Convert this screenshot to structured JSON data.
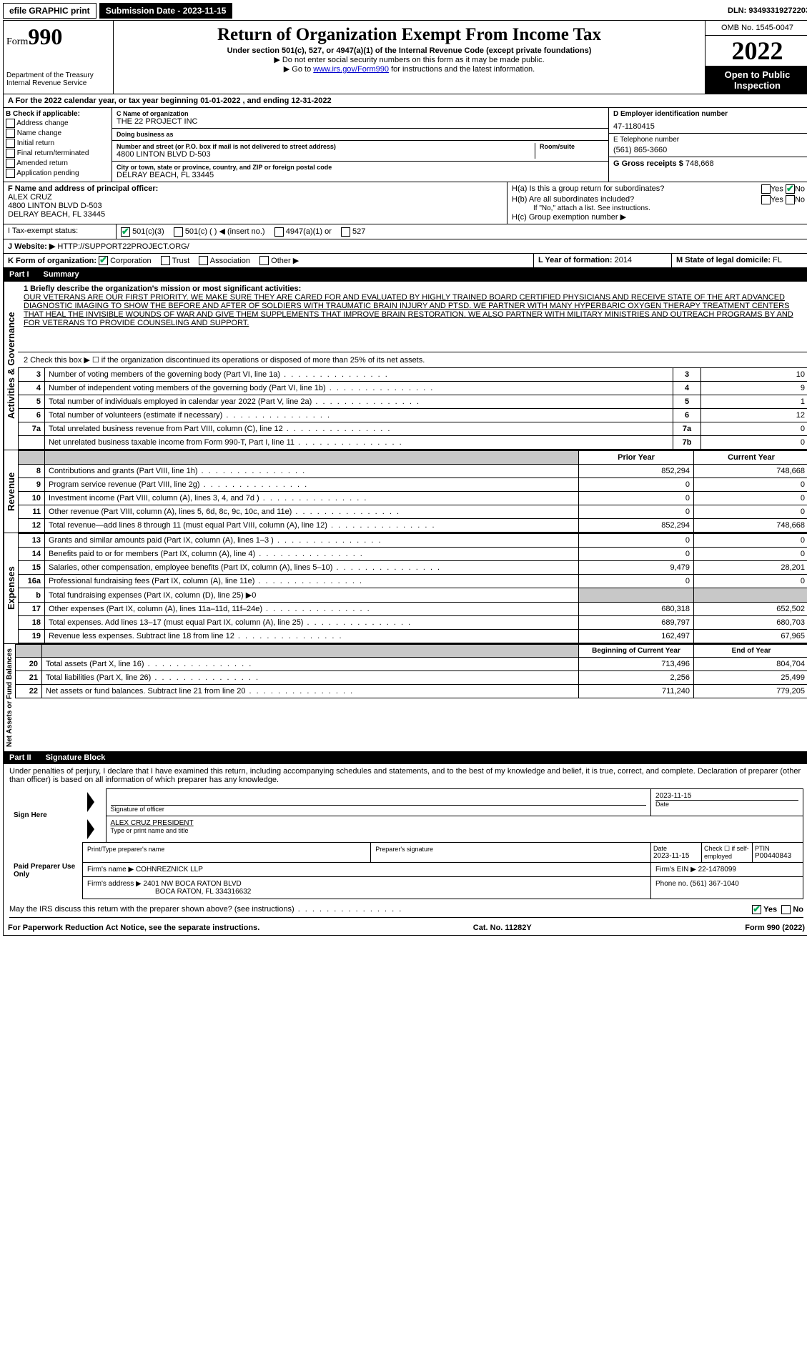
{
  "top": {
    "efile": "efile GRAPHIC print",
    "submission_label": "Submission Date - 2023-11-15",
    "dln": "DLN: 93493319272203"
  },
  "header": {
    "form_prefix": "Form",
    "form_no": "990",
    "dept": "Department of the Treasury",
    "irs": "Internal Revenue Service",
    "title": "Return of Organization Exempt From Income Tax",
    "subtitle": "Under section 501(c), 527, or 4947(a)(1) of the Internal Revenue Code (except private foundations)",
    "note1": "▶ Do not enter social security numbers on this form as it may be made public.",
    "note2_pre": "▶ Go to ",
    "note2_link": "www.irs.gov/Form990",
    "note2_post": " for instructions and the latest information.",
    "omb": "OMB No. 1545-0047",
    "year": "2022",
    "open": "Open to Public Inspection"
  },
  "period": {
    "a": "A For the 2022 calendar year, or tax year beginning 01-01-2022   , and ending 12-31-2022"
  },
  "b": {
    "hdr": "B Check if applicable:",
    "o1": "Address change",
    "o2": "Name change",
    "o3": "Initial return",
    "o4": "Final return/terminated",
    "o5": "Amended return",
    "o6": "Application pending"
  },
  "c": {
    "name_lbl": "C Name of organization",
    "name": "THE 22 PROJECT INC",
    "dba_lbl": "Doing business as",
    "dba": "",
    "addr_lbl": "Number and street (or P.O. box if mail is not delivered to street address)",
    "room_lbl": "Room/suite",
    "addr": "4800 LINTON BLVD D-503",
    "city_lbl": "City or town, state or province, country, and ZIP or foreign postal code",
    "city": "DELRAY BEACH, FL  33445"
  },
  "d": {
    "lbl": "D Employer identification number",
    "val": "47-1180415"
  },
  "e": {
    "lbl": "E Telephone number",
    "val": "(561) 865-3660"
  },
  "g": {
    "lbl": "G Gross receipts $",
    "val": "748,668"
  },
  "f": {
    "lbl": "F Name and address of principal officer:",
    "name": "ALEX CRUZ",
    "addr1": "4800 LINTON BLVD D-503",
    "addr2": "DELRAY BEACH, FL  33445"
  },
  "h": {
    "a": "H(a)  Is this a group return for subordinates?",
    "b": "H(b)  Are all subordinates included?",
    "bnote": "If \"No,\" attach a list. See instructions.",
    "c": "H(c)  Group exemption number ▶",
    "yes": "Yes",
    "no": "No"
  },
  "i": {
    "lbl": "I   Tax-exempt status:",
    "o1": "501(c)(3)",
    "o2": "501(c) (   ) ◀ (insert no.)",
    "o3": "4947(a)(1) or",
    "o4": "527"
  },
  "j": {
    "lbl": "J   Website: ▶",
    "val": "HTTP://SUPPORT22PROJECT.ORG/"
  },
  "k": {
    "lbl": "K Form of organization:",
    "o1": "Corporation",
    "o2": "Trust",
    "o3": "Association",
    "o4": "Other ▶"
  },
  "l": {
    "lbl": "L Year of formation:",
    "val": "2014"
  },
  "m": {
    "lbl": "M State of legal domicile:",
    "val": "FL"
  },
  "part1": {
    "num": "Part I",
    "title": "Summary"
  },
  "summary": {
    "l1": "1   Briefly describe the organization's mission or most significant activities:",
    "mission": "OUR VETERANS ARE OUR FIRST PRIORITY. WE MAKE SURE THEY ARE CARED FOR AND EVALUATED BY HIGHLY TRAINED BOARD CERTIFIED PHYSICIANS AND RECEIVE STATE OF THE ART ADVANCED DIAGNOSTIC IMAGING TO SHOW THE BEFORE AND AFTER OF SOLDIERS WITH TRAUMATIC BRAIN INJURY AND PTSD. WE PARTNER WITH MANY HYPERBARIC OXYGEN THERAPY TREATMENT CENTERS THAT HEAL THE INVISIBLE WOUNDS OF WAR AND GIVE THEM SUPPLEMENTS THAT IMPROVE BRAIN RESTORATION. WE ALSO PARTNER WITH MILITARY MINISTRIES AND OUTREACH PROGRAMS BY AND FOR VETERANS TO PROVIDE COUNSELING AND SUPPORT.",
    "l2": "2   Check this box ▶ ☐ if the organization discontinued its operations or disposed of more than 25% of its net assets.",
    "rows_single": [
      {
        "n": "3",
        "t": "Number of voting members of the governing body (Part VI, line 1a)",
        "b": "3",
        "v": "10"
      },
      {
        "n": "4",
        "t": "Number of independent voting members of the governing body (Part VI, line 1b)",
        "b": "4",
        "v": "9"
      },
      {
        "n": "5",
        "t": "Total number of individuals employed in calendar year 2022 (Part V, line 2a)",
        "b": "5",
        "v": "1"
      },
      {
        "n": "6",
        "t": "Total number of volunteers (estimate if necessary)",
        "b": "6",
        "v": "12"
      },
      {
        "n": "7a",
        "t": "Total unrelated business revenue from Part VIII, column (C), line 12",
        "b": "7a",
        "v": "0"
      },
      {
        "n": "",
        "t": "Net unrelated business taxable income from Form 990-T, Part I, line 11",
        "b": "7b",
        "v": "0"
      }
    ],
    "col_prior": "Prior Year",
    "col_curr": "Current Year",
    "rev_rows": [
      {
        "n": "8",
        "t": "Contributions and grants (Part VIII, line 1h)",
        "p": "852,294",
        "c": "748,668"
      },
      {
        "n": "9",
        "t": "Program service revenue (Part VIII, line 2g)",
        "p": "0",
        "c": "0"
      },
      {
        "n": "10",
        "t": "Investment income (Part VIII, column (A), lines 3, 4, and 7d )",
        "p": "0",
        "c": "0"
      },
      {
        "n": "11",
        "t": "Other revenue (Part VIII, column (A), lines 5, 6d, 8c, 9c, 10c, and 11e)",
        "p": "0",
        "c": "0"
      },
      {
        "n": "12",
        "t": "Total revenue—add lines 8 through 11 (must equal Part VIII, column (A), line 12)",
        "p": "852,294",
        "c": "748,668"
      }
    ],
    "exp_rows": [
      {
        "n": "13",
        "t": "Grants and similar amounts paid (Part IX, column (A), lines 1–3 )",
        "p": "0",
        "c": "0"
      },
      {
        "n": "14",
        "t": "Benefits paid to or for members (Part IX, column (A), line 4)",
        "p": "0",
        "c": "0"
      },
      {
        "n": "15",
        "t": "Salaries, other compensation, employee benefits (Part IX, column (A), lines 5–10)",
        "p": "9,479",
        "c": "28,201"
      },
      {
        "n": "16a",
        "t": "Professional fundraising fees (Part IX, column (A), line 11e)",
        "p": "0",
        "c": "0"
      },
      {
        "n": "b",
        "t": "Total fundraising expenses (Part IX, column (D), line 25) ▶0",
        "p": "",
        "c": "",
        "grey": true
      },
      {
        "n": "17",
        "t": "Other expenses (Part IX, column (A), lines 11a–11d, 11f–24e)",
        "p": "680,318",
        "c": "652,502"
      },
      {
        "n": "18",
        "t": "Total expenses. Add lines 13–17 (must equal Part IX, column (A), line 25)",
        "p": "689,797",
        "c": "680,703"
      },
      {
        "n": "19",
        "t": "Revenue less expenses. Subtract line 18 from line 12",
        "p": "162,497",
        "c": "67,965"
      }
    ],
    "col_boy": "Beginning of Current Year",
    "col_eoy": "End of Year",
    "na_rows": [
      {
        "n": "20",
        "t": "Total assets (Part X, line 16)",
        "p": "713,496",
        "c": "804,704"
      },
      {
        "n": "21",
        "t": "Total liabilities (Part X, line 26)",
        "p": "2,256",
        "c": "25,499"
      },
      {
        "n": "22",
        "t": "Net assets or fund balances. Subtract line 21 from line 20",
        "p": "711,240",
        "c": "779,205"
      }
    ],
    "side_gov": "Activities & Governance",
    "side_rev": "Revenue",
    "side_exp": "Expenses",
    "side_na": "Net Assets or Fund Balances"
  },
  "part2": {
    "num": "Part II",
    "title": "Signature Block"
  },
  "sig": {
    "decl": "Under penalties of perjury, I declare that I have examined this return, including accompanying schedules and statements, and to the best of my knowledge and belief, it is true, correct, and complete. Declaration of preparer (other than officer) is based on all information of which preparer has any knowledge.",
    "sign_here": "Sign Here",
    "sig_officer": "Signature of officer",
    "date_lbl": "Date",
    "date": "2023-11-15",
    "name_title": "ALEX CRUZ  PRESIDENT",
    "type_print": "Type or print name and title",
    "paid": "Paid Preparer Use Only",
    "prep_name_lbl": "Print/Type preparer's name",
    "prep_sig_lbl": "Preparer's signature",
    "prep_date": "2023-11-15",
    "self_emp": "Check ☐ if self-employed",
    "ptin_lbl": "PTIN",
    "ptin": "P00440843",
    "firm_name_lbl": "Firm's name    ▶",
    "firm_name": "COHNREZNICK LLP",
    "firm_ein_lbl": "Firm's EIN ▶",
    "firm_ein": "22-1478099",
    "firm_addr_lbl": "Firm's address ▶",
    "firm_addr1": "2401 NW BOCA RATON BLVD",
    "firm_addr2": "BOCA RATON, FL  334316632",
    "phone_lbl": "Phone no.",
    "phone": "(561) 367-1040",
    "may_irs": "May the IRS discuss this return with the preparer shown above? (see instructions)",
    "yes": "Yes",
    "no": "No"
  },
  "footer": {
    "pra": "For Paperwork Reduction Act Notice, see the separate instructions.",
    "cat": "Cat. No. 11282Y",
    "form": "Form 990 (2022)"
  }
}
